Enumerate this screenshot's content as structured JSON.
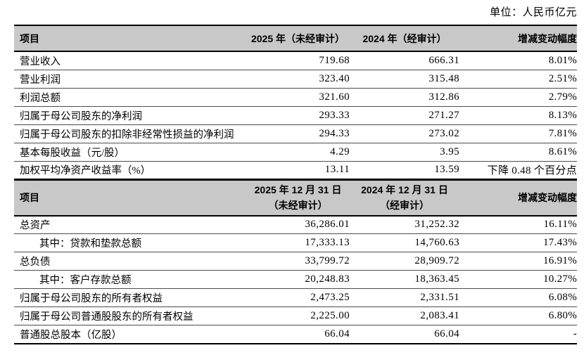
{
  "unit_label": "单位：人民币亿元",
  "colors": {
    "header_bg": "#c8c8c8",
    "border_heavy": "#000000",
    "border_row": "#4c4c4c"
  },
  "income_table": {
    "headers": {
      "item": "项目",
      "col2025": "2025 年（未经审计）",
      "col2024": "2024 年（经审计）",
      "change": "增减变动幅度"
    },
    "rows": [
      {
        "label": "营业收入",
        "y2025": "719.68",
        "y2024": "666.31",
        "change": "8.01%"
      },
      {
        "label": "营业利润",
        "y2025": "323.40",
        "y2024": "315.48",
        "change": "2.51%"
      },
      {
        "label": "利润总额",
        "y2025": "321.60",
        "y2024": "312.86",
        "change": "2.79%"
      },
      {
        "label": "归属于母公司股东的净利润",
        "y2025": "293.33",
        "y2024": "271.27",
        "change": "8.13%"
      },
      {
        "label": "归属于母公司股东的扣除非经常性损益的净利润",
        "y2025": "294.33",
        "y2024": "273.02",
        "change": "7.81%"
      },
      {
        "label": "基本每股收益（元/股）",
        "y2025": "4.29",
        "y2024": "3.95",
        "change": "8.61%"
      },
      {
        "label": "加权平均净资产收益率（%）",
        "y2025": "13.11",
        "y2024": "13.59",
        "change": "下降 0.48 个百分点"
      }
    ]
  },
  "balance_table": {
    "headers": {
      "item": "项目",
      "col2025_line1": "2025 年 12 月 31 日",
      "col2025_line2": "（未经审计）",
      "col2024_line1": "2024 年 12 月 31 日",
      "col2024_line2": "（经审计）",
      "change": "增减变动幅度"
    },
    "rows": [
      {
        "label": "总资产",
        "y2025": "36,286.01",
        "y2024": "31,252.32",
        "change": "16.11%"
      },
      {
        "label": "其中：贷款和垫款总额",
        "indent": true,
        "y2025": "17,333.13",
        "y2024": "14,760.63",
        "change": "17.43%"
      },
      {
        "label": "总负债",
        "y2025": "33,799.72",
        "y2024": "28,909.72",
        "change": "16.91%"
      },
      {
        "label": "其中：客户存款总额",
        "indent": true,
        "y2025": "20,248.83",
        "y2024": "18,363.45",
        "change": "10.27%"
      },
      {
        "label": "归属于母公司股东的所有者权益",
        "y2025": "2,473.25",
        "y2024": "2,331.51",
        "change": "6.08%"
      },
      {
        "label": "归属于母公司普通股股东的所有者权益",
        "y2025": "2,225.00",
        "y2024": "2,083.41",
        "change": "6.80%"
      },
      {
        "label": "普通股总股本（亿股）",
        "y2025": "66.04",
        "y2024": "66.04",
        "change": "-"
      }
    ]
  }
}
